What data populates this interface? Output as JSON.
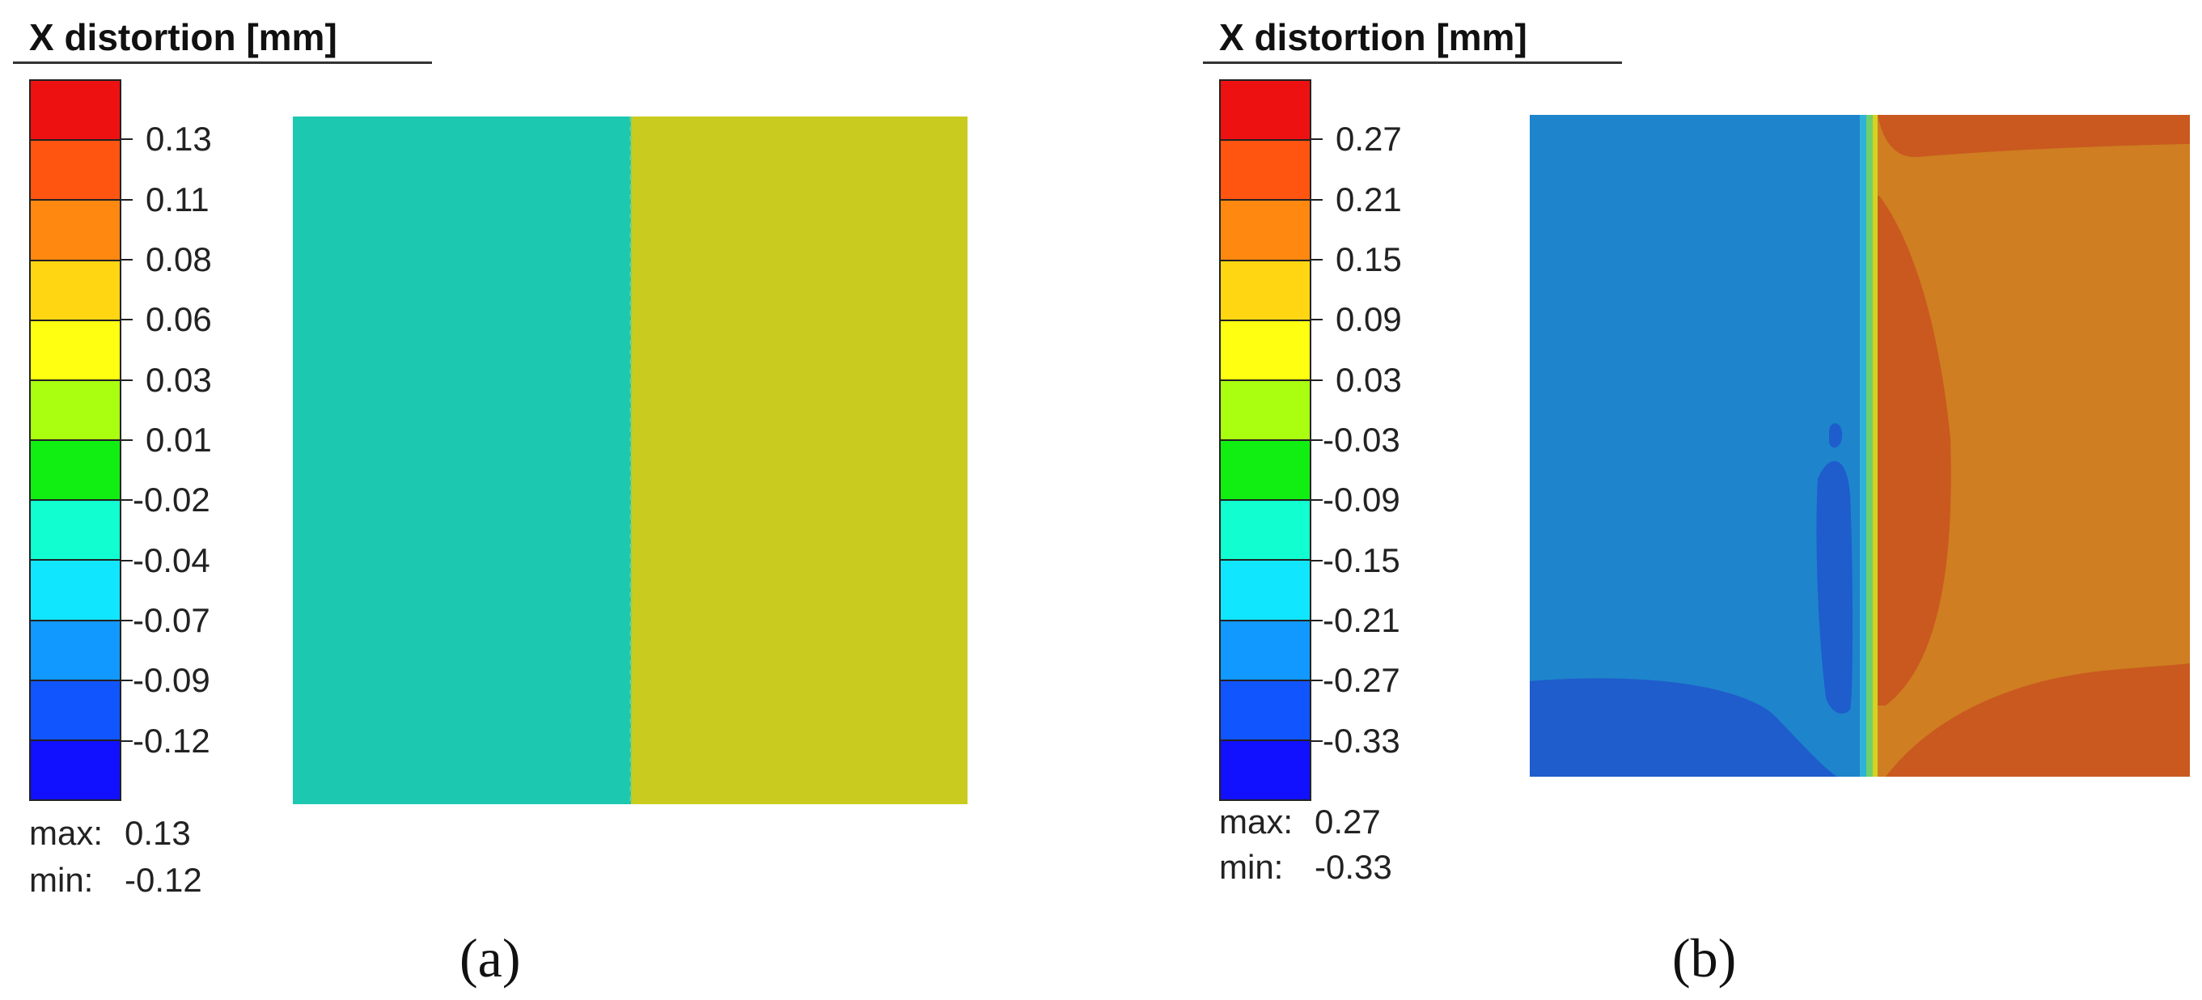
{
  "panels": [
    {
      "caption": "(a)",
      "legend": {
        "title": "X distortion [mm]",
        "band_colors": [
          "#ee1111",
          "#ff5511",
          "#ff8811",
          "#ffd611",
          "#ffff11",
          "#aaff11",
          "#11ee11",
          "#11ffd0",
          "#11e6ff",
          "#1199ff",
          "#1155ff",
          "#1111ff"
        ],
        "ticks": [
          "0.13",
          "0.11",
          "0.08",
          "0.06",
          "0.03",
          "0.01",
          "-0.02",
          "-0.04",
          "-0.07",
          "-0.09",
          "-0.12"
        ],
        "max_label": "max:",
        "max_value": "0.13",
        "min_label": "min:",
        "min_value": "-0.12"
      },
      "field": {
        "left_region_color": "#1cc8b0",
        "right_region_color": "#c9cc1e",
        "seam_color": "#7fcf7a"
      }
    },
    {
      "caption": "(b)",
      "legend": {
        "title": "X distortion [mm]",
        "band_colors": [
          "#ee1111",
          "#ff5511",
          "#ff8811",
          "#ffd611",
          "#ffff11",
          "#aaff11",
          "#11ee11",
          "#11ffd0",
          "#11e6ff",
          "#1199ff",
          "#1155ff",
          "#1111ff"
        ],
        "ticks": [
          "0.27",
          "0.21",
          "0.15",
          "0.09",
          "0.03",
          "-0.03",
          "-0.09",
          "-0.15",
          "-0.21",
          "-0.27",
          "-0.33"
        ],
        "max_label": "max:",
        "max_value": "0.27",
        "min_label": "min:",
        "min_value": "-0.33"
      },
      "field": {
        "left_base_color": "#1e84cc",
        "left_low_color": "#1f5ccc",
        "right_base_color": "#cf7e22",
        "right_high_color": "#c9591f",
        "seam_colors": [
          "#2fb2d8",
          "#6fcf6a",
          "#d6d222"
        ]
      }
    }
  ]
}
